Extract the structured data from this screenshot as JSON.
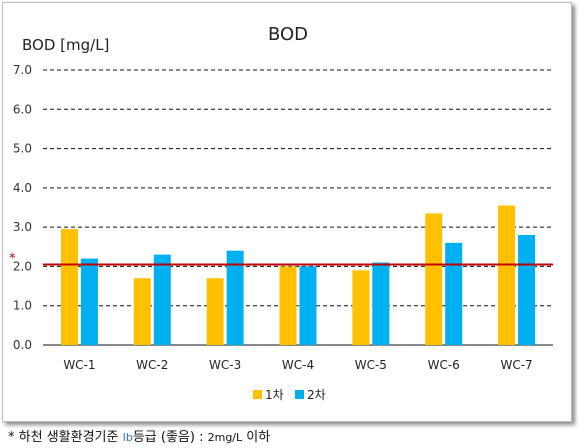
{
  "chart_data": {
    "type": "bar",
    "title": "BOD",
    "ylabel": "BOD [mg/L]",
    "xlabel": "",
    "categories": [
      "WC-1",
      "WC-2",
      "WC-3",
      "WC-4",
      "WC-5",
      "WC-6",
      "WC-7"
    ],
    "series": [
      {
        "name": "1차",
        "color": "#FFC000",
        "values": [
          2.95,
          1.7,
          1.7,
          2.0,
          1.9,
          3.35,
          3.55
        ]
      },
      {
        "name": "2차",
        "color": "#00B0F0",
        "values": [
          2.2,
          2.3,
          2.4,
          2.0,
          2.1,
          2.6,
          2.8
        ]
      }
    ],
    "ylim": [
      0,
      7
    ],
    "yticks": [
      "0.0",
      "1.0",
      "2.0",
      "3.0",
      "4.0",
      "5.0",
      "6.0",
      "7.0"
    ],
    "grid": true,
    "grid_style": "dashed",
    "legend": "bottom",
    "reference_line": {
      "value": 2.05,
      "color": "#C00000",
      "marker": "*"
    }
  },
  "footnote": {
    "star": "*",
    "part1": "하천 생활환경기준",
    "grade": "Ib",
    "part2": "등급 (좋음) :",
    "limit": "2mg/L",
    "part3": "이하"
  }
}
